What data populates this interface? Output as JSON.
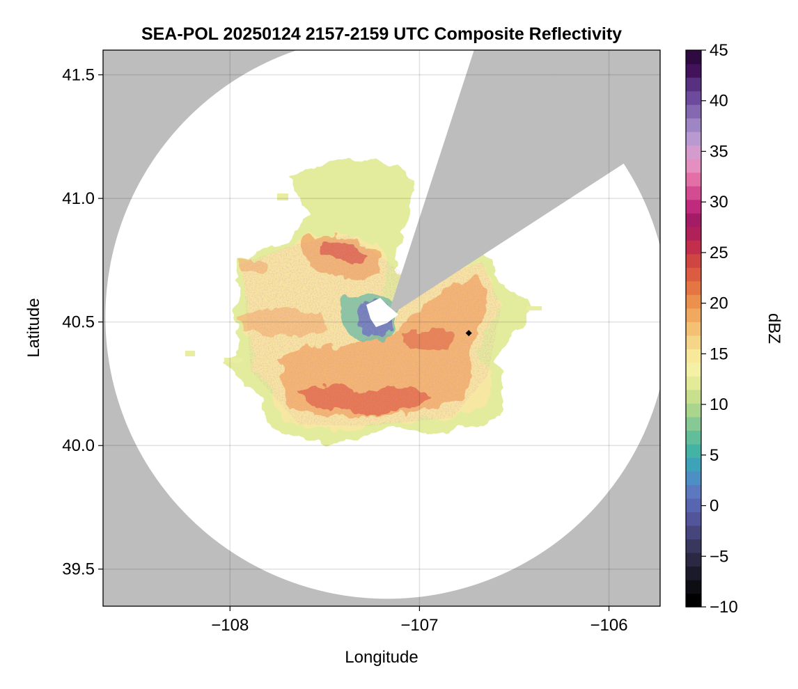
{
  "chart_data": {
    "type": "heatmap",
    "title": "SEA-POL 20250124 2157-2159 UTC Composite Reflectivity",
    "xlabel": "Longitude",
    "ylabel": "Latitude",
    "xlim": [
      -108.67,
      -105.73
    ],
    "ylim": [
      39.35,
      41.6
    ],
    "x_ticks": [
      -108,
      -107,
      -106
    ],
    "y_ticks": [
      39.5,
      40.0,
      40.5,
      41.0,
      41.5
    ],
    "x_tick_labels": [
      "−108",
      "−107",
      "−106"
    ],
    "y_tick_labels": [
      "39.5",
      "40.0",
      "40.5",
      "41.0",
      "41.5"
    ],
    "grid": true,
    "background_color": "#bdbdbd",
    "coverage_color": "#ffffff",
    "radar_site": {
      "lon": -107.17,
      "lat": 40.52
    },
    "range_ring_radius_deg_lat": 1.14,
    "blocked_sectors_azimuth_deg": [
      [
        18,
        57
      ]
    ],
    "marker": {
      "lon": -106.74,
      "lat": 40.455,
      "shape": "diamond",
      "color": "#000000"
    },
    "echo_regions": [
      {
        "description": "stratiform echo",
        "lon": -107.05,
        "lat": 40.3,
        "dbz": 22
      },
      {
        "description": "max reflectivity band",
        "lon": -107.15,
        "lat": 40.18,
        "dbz": 30
      },
      {
        "description": "northern cell",
        "lon": -107.45,
        "lat": 40.78,
        "dbz": 28
      },
      {
        "description": "near-radar clutter",
        "lon": -107.22,
        "lat": 40.45,
        "dbz": 3
      }
    ],
    "colorbar": {
      "label": "dBZ",
      "range": [
        -10,
        45
      ],
      "ticks": [
        -10,
        -5,
        0,
        5,
        10,
        15,
        20,
        25,
        30,
        35,
        40,
        45
      ],
      "tick_labels": [
        "−10",
        "−5",
        "0",
        "5",
        "10",
        "15",
        "20",
        "25",
        "30",
        "35",
        "40",
        "45"
      ],
      "colors": [
        "#000000",
        "#0d0d14",
        "#1b1a2a",
        "#2a2842",
        "#38375e",
        "#47467c",
        "#52559a",
        "#5866b2",
        "#5c79c0",
        "#4d8ec4",
        "#3ea3b8",
        "#45b3a3",
        "#62bd9a",
        "#86c994",
        "#a9d58c",
        "#c8e08d",
        "#e3ea98",
        "#f4f1a6",
        "#f8e89a",
        "#f5d588",
        "#f3c074",
        "#f0a95f",
        "#ec904e",
        "#e57644",
        "#dc5c41",
        "#cf4541",
        "#c22e4b",
        "#b02159",
        "#a51c66",
        "#c02a7c",
        "#d34b91",
        "#e26fa6",
        "#e48fc0",
        "#d49ccd",
        "#b99ad0",
        "#9e85c3",
        "#8468b0",
        "#6d4a9c",
        "#57307f",
        "#42125a",
        "#2e0a40"
      ]
    }
  }
}
